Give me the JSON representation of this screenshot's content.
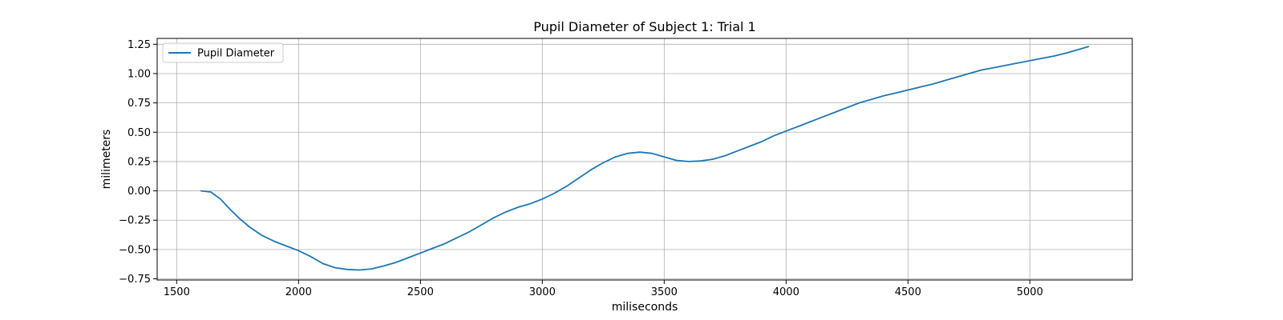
{
  "chart_data": {
    "type": "line",
    "title": "Pupil Diameter of Subject 1: Trial 1",
    "xlabel": "miliseconds",
    "ylabel": "milimeters",
    "xlim": [
      1420,
      5420
    ],
    "ylim": [
      -0.76,
      1.3
    ],
    "xticks": [
      1500,
      2000,
      2500,
      3000,
      3500,
      4000,
      4500,
      5000
    ],
    "yticks": [
      -0.75,
      -0.5,
      -0.25,
      0.0,
      0.25,
      0.5,
      0.75,
      1.0,
      1.25
    ],
    "ytick_labels": [
      "−0.75",
      "−0.50",
      "−0.25",
      "0.00",
      "0.25",
      "0.50",
      "0.75",
      "1.00",
      "1.25"
    ],
    "grid": true,
    "legend_position": "upper-left",
    "series": [
      {
        "name": "Pupil Diameter",
        "color": "#1f77b4",
        "x": [
          1600,
          1640,
          1680,
          1720,
          1760,
          1800,
          1850,
          1900,
          1950,
          2000,
          2050,
          2100,
          2150,
          2200,
          2250,
          2300,
          2350,
          2400,
          2450,
          2500,
          2550,
          2600,
          2650,
          2700,
          2750,
          2800,
          2850,
          2900,
          2950,
          3000,
          3050,
          3100,
          3150,
          3200,
          3250,
          3300,
          3350,
          3400,
          3450,
          3500,
          3550,
          3600,
          3650,
          3700,
          3750,
          3800,
          3850,
          3900,
          3950,
          4000,
          4050,
          4100,
          4150,
          4200,
          4250,
          4300,
          4350,
          4400,
          4450,
          4500,
          4550,
          4600,
          4650,
          4700,
          4750,
          4800,
          4850,
          4900,
          4950,
          5000,
          5050,
          5100,
          5150,
          5200,
          5240
        ],
        "y": [
          0.0,
          -0.01,
          -0.07,
          -0.16,
          -0.24,
          -0.31,
          -0.38,
          -0.43,
          -0.47,
          -0.51,
          -0.56,
          -0.62,
          -0.655,
          -0.67,
          -0.675,
          -0.665,
          -0.64,
          -0.61,
          -0.57,
          -0.53,
          -0.49,
          -0.45,
          -0.4,
          -0.35,
          -0.29,
          -0.23,
          -0.18,
          -0.14,
          -0.11,
          -0.07,
          -0.02,
          0.04,
          0.11,
          0.18,
          0.24,
          0.29,
          0.32,
          0.33,
          0.32,
          0.29,
          0.26,
          0.25,
          0.255,
          0.27,
          0.3,
          0.34,
          0.38,
          0.42,
          0.47,
          0.51,
          0.55,
          0.59,
          0.63,
          0.67,
          0.71,
          0.75,
          0.78,
          0.81,
          0.835,
          0.86,
          0.885,
          0.91,
          0.94,
          0.97,
          1.0,
          1.03,
          1.05,
          1.07,
          1.09,
          1.11,
          1.13,
          1.15,
          1.175,
          1.205,
          1.23
        ]
      }
    ]
  }
}
